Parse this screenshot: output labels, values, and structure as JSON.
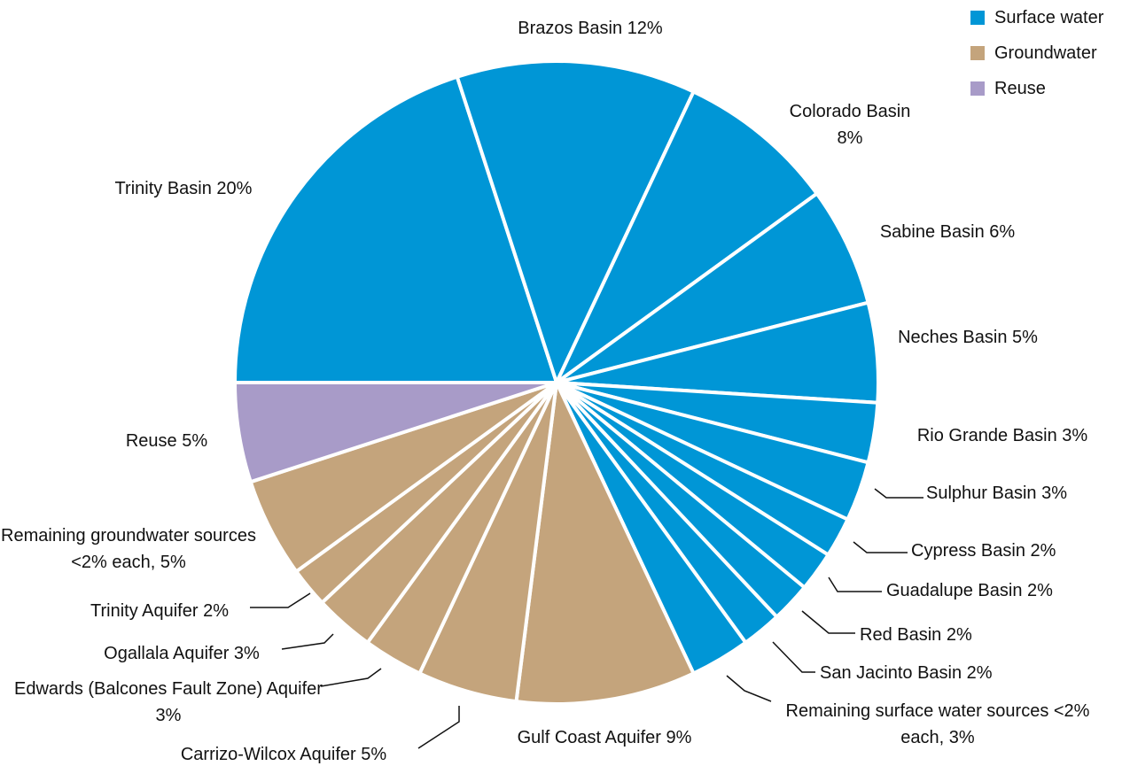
{
  "chart_data": {
    "type": "pie",
    "series": [
      {
        "name": "Surface water",
        "color": "#0096d6",
        "categories": [
          "Trinity Basin",
          "Brazos Basin",
          "Colorado Basin",
          "Sabine Basin",
          "Neches Basin",
          "Rio Grande Basin",
          "Sulphur Basin",
          "Cypress Basin",
          "Guadalupe Basin",
          "Red Basin",
          "San Jacinto Basin",
          "Remaining surface water sources <2% each,"
        ],
        "values": [
          20,
          12,
          8,
          6,
          5,
          3,
          3,
          2,
          2,
          2,
          2,
          3
        ],
        "value_labels": [
          "20%",
          "12%",
          "8%",
          "6%",
          "5%",
          "3%",
          "3%",
          "2%",
          "2%",
          "2%",
          "2%",
          "3%"
        ]
      },
      {
        "name": "Groundwater",
        "color": "#c4a47c",
        "categories": [
          "Gulf Coast Aquifer",
          "Carrizo-Wilcox Aquifer",
          "Edwards (Balcones Fault Zone) Aquifer",
          "Ogallala Aquifer",
          "Trinity Aquifer",
          "Remaining groundwater sources <2% each,"
        ],
        "values": [
          9,
          5,
          3,
          3,
          2,
          5
        ],
        "value_labels": [
          "9%",
          "5%",
          "3%",
          "3%",
          "2%",
          "5%"
        ]
      },
      {
        "name": "Reuse",
        "color": "#a89bc8",
        "categories": [
          "Reuse"
        ],
        "values": [
          5
        ],
        "value_labels": [
          "5%"
        ]
      }
    ],
    "legend": "top-right"
  }
}
